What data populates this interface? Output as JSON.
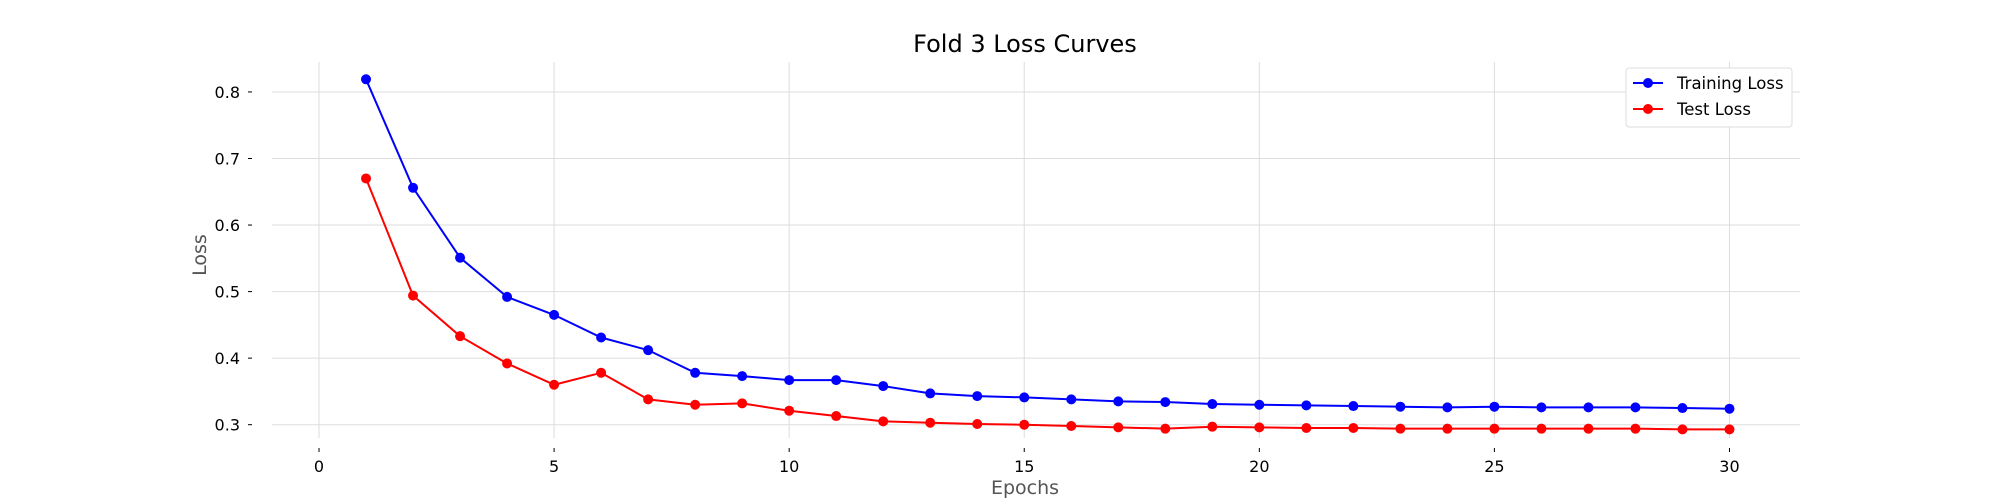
{
  "chart_data": {
    "type": "line",
    "title": "Fold 3 Loss Curves",
    "xlabel": "Epochs",
    "ylabel": "Loss",
    "xlim": [
      -1,
      31.5
    ],
    "ylim": [
      0.28,
      0.845
    ],
    "xticks": [
      0,
      5,
      10,
      15,
      20,
      25,
      30
    ],
    "yticks": [
      0.3,
      0.4,
      0.5,
      0.6,
      0.7,
      0.8
    ],
    "ytick_labels": [
      "0.3",
      "0.4",
      "0.5",
      "0.6",
      "0.7",
      "0.8"
    ],
    "grid": true,
    "legend_position": "top-right",
    "x": [
      1,
      2,
      3,
      4,
      5,
      6,
      7,
      8,
      9,
      10,
      11,
      12,
      13,
      14,
      15,
      16,
      17,
      18,
      19,
      20,
      21,
      22,
      23,
      24,
      25,
      26,
      27,
      28,
      29,
      30
    ],
    "series": [
      {
        "name": "Training Loss",
        "color": "#0000ff",
        "values": [
          0.819,
          0.656,
          0.551,
          0.492,
          0.465,
          0.431,
          0.412,
          0.378,
          0.373,
          0.367,
          0.367,
          0.358,
          0.347,
          0.343,
          0.341,
          0.338,
          0.335,
          0.334,
          0.331,
          0.33,
          0.329,
          0.328,
          0.327,
          0.326,
          0.327,
          0.326,
          0.326,
          0.326,
          0.325,
          0.324
        ]
      },
      {
        "name": "Test Loss",
        "color": "#ff0000",
        "values": [
          0.67,
          0.494,
          0.433,
          0.392,
          0.36,
          0.378,
          0.338,
          0.33,
          0.332,
          0.321,
          0.313,
          0.305,
          0.303,
          0.301,
          0.3,
          0.298,
          0.296,
          0.294,
          0.297,
          0.296,
          0.295,
          0.295,
          0.294,
          0.294,
          0.294,
          0.294,
          0.294,
          0.294,
          0.293,
          0.293
        ]
      }
    ]
  }
}
